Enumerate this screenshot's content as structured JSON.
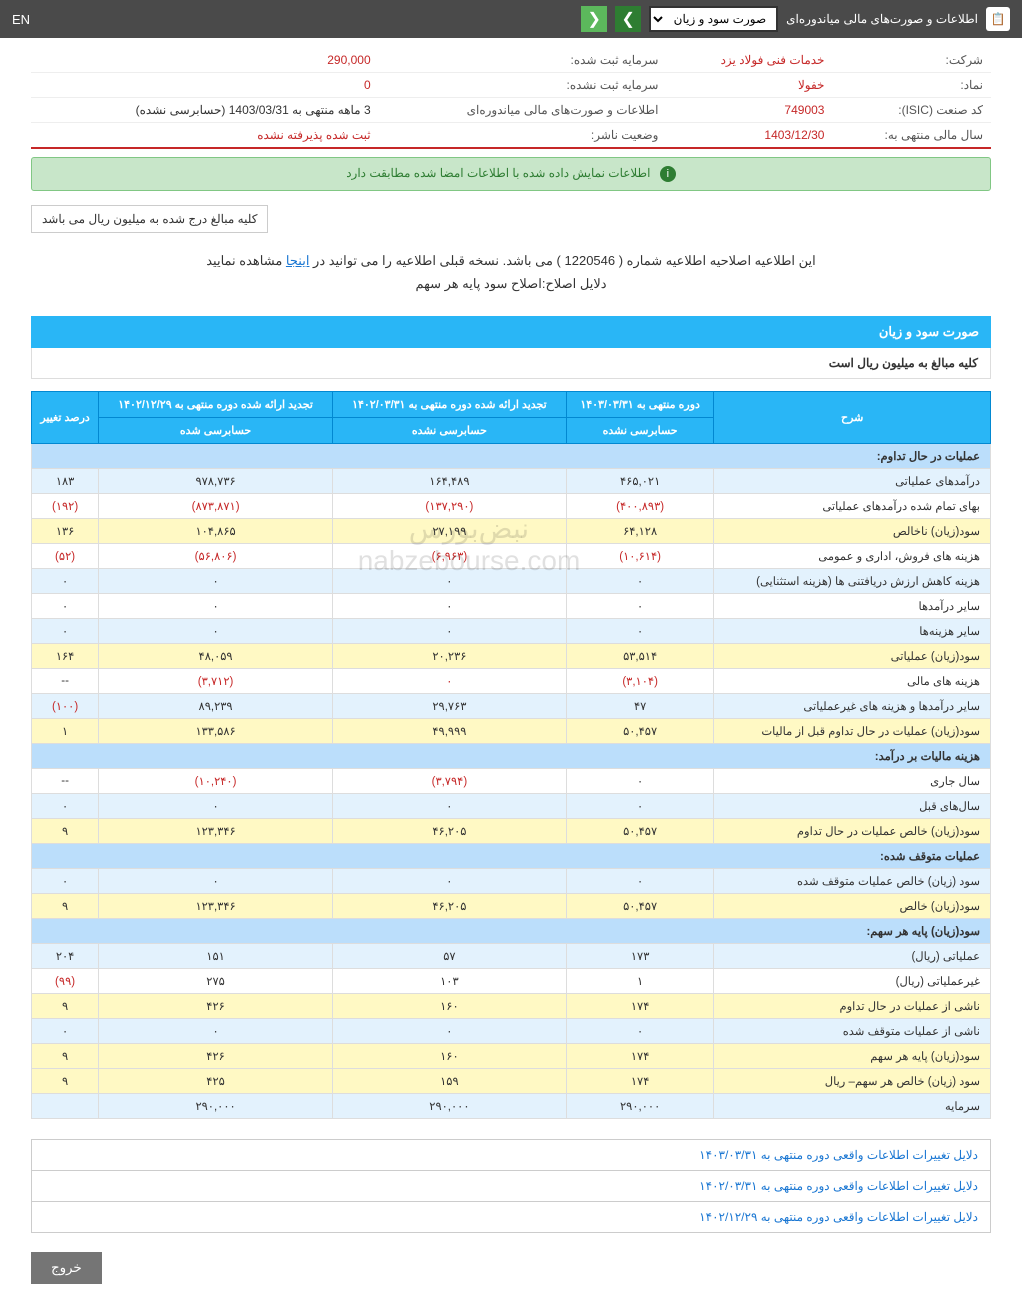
{
  "topbar": {
    "title": "اطلاعات و صورت‌های مالی میاندوره‌ای",
    "dropdown": "صورت سود و زیان",
    "lang": "EN"
  },
  "info": {
    "company_lbl": "شرکت:",
    "company_val": "خدمات فنی فولاد یزد",
    "capital_reg_lbl": "سرمایه ثبت شده:",
    "capital_reg_val": "290,000",
    "symbol_lbl": "نماد:",
    "symbol_val": "خفولا",
    "capital_unreg_lbl": "سرمایه ثبت نشده:",
    "capital_unreg_val": "0",
    "isic_lbl": "کد صنعت (ISIC):",
    "isic_val": "749003",
    "report_lbl": "اطلاعات و صورت‌های مالی میاندوره‌ای",
    "report_val": "3 ماهه منتهی به 1403/03/31 (حسابرسی نشده)",
    "fy_lbl": "سال مالی منتهی به:",
    "fy_val": "1403/12/30",
    "status_lbl": "وضعیت ناشر:",
    "status_val": "ثبت شده پذیرفته نشده"
  },
  "banner": "اطلاعات نمایش داده شده با اطلاعات امضا شده مطابقت دارد",
  "note_box": "کلیه مبالغ درج شده به میلیون ریال می باشد",
  "notice1_a": "این اطلاعیه اصلاحیه اطلاعیه شماره ( 1220546 ) می باشد. نسخه قبلی اطلاعیه را می توانید در ",
  "notice1_link": "اینجا",
  "notice1_b": " مشاهده نمایید",
  "notice2": "دلایل اصلاح:اصلاح سود پایه هر سهم",
  "section_title": "صورت سود و زیان",
  "section_sub": "کلیه مبالغ به میلیون ریال است",
  "headers": {
    "desc": "شرح",
    "c1a": "دوره منتهی به ۱۴۰۳/۰۳/۳۱",
    "c1b": "حسابرسی نشده",
    "c2a": "تجدید ارائه شده دوره منتهی به ۱۴۰۲/۰۳/۳۱",
    "c2b": "حسابرسی نشده",
    "c3a": "تجدید ارائه شده دوره منتهی به ۱۴۰۲/۱۲/۲۹",
    "c3b": "حسابرسی شده",
    "c4": "درصد تغییر"
  },
  "rows": [
    {
      "type": "head",
      "label": "عملیات در حال تداوم:"
    },
    {
      "type": "alt",
      "label": "درآمدهای عملیاتی",
      "v1": "۴۶۵,۰۲۱",
      "v2": "۱۶۴,۴۸۹",
      "v3": "۹۷۸,۷۳۶",
      "v4": "۱۸۳"
    },
    {
      "type": "",
      "label": "بهای تمام شده درآمدهای عملیاتی",
      "v1": "(۴۰۰,۸۹۳)",
      "v2": "(۱۳۷,۲۹۰)",
      "v3": "(۸۷۳,۸۷۱)",
      "v4": "(۱۹۲)",
      "neg": true
    },
    {
      "type": "yellow",
      "label": "سود(زیان) ناخالص",
      "v1": "۶۴,۱۲۸",
      "v2": "۲۷,۱۹۹",
      "v3": "۱۰۴,۸۶۵",
      "v4": "۱۳۶"
    },
    {
      "type": "",
      "label": "هزینه های فروش، اداری و عمومی",
      "v1": "(۱۰,۶۱۴)",
      "v2": "(۶,۹۶۳)",
      "v3": "(۵۶,۸۰۶)",
      "v4": "(۵۲)",
      "neg": true
    },
    {
      "type": "alt",
      "label": "هزینه کاهش ارزش دریافتنی ها (هزینه استثنایی)",
      "v1": "۰",
      "v2": "۰",
      "v3": "۰",
      "v4": "۰"
    },
    {
      "type": "",
      "label": "سایر درآمدها",
      "v1": "۰",
      "v2": "۰",
      "v3": "۰",
      "v4": "۰"
    },
    {
      "type": "alt",
      "label": "سایر هزینه‌ها",
      "v1": "۰",
      "v2": "۰",
      "v3": "۰",
      "v4": "۰"
    },
    {
      "type": "yellow",
      "label": "سود(زیان) عملیاتی",
      "v1": "۵۳,۵۱۴",
      "v2": "۲۰,۲۳۶",
      "v3": "۴۸,۰۵۹",
      "v4": "۱۶۴"
    },
    {
      "type": "",
      "label": "هزینه های مالی",
      "v1": "(۳,۱۰۴)",
      "v2": "۰",
      "v3": "(۳,۷۱۲)",
      "v4": "--",
      "neg": true
    },
    {
      "type": "alt",
      "label": "سایر درآمدها و هزینه های غیرعملیاتی",
      "v1": "۴۷",
      "v2": "۲۹,۷۶۳",
      "v3": "۸۹,۲۳۹",
      "v4": "(۱۰۰)",
      "v4neg": true
    },
    {
      "type": "yellow",
      "label": "سود(زیان) عملیات در حال تداوم قبل از مالیات",
      "v1": "۵۰,۴۵۷",
      "v2": "۴۹,۹۹۹",
      "v3": "۱۳۳,۵۸۶",
      "v4": "۱"
    },
    {
      "type": "head",
      "label": "هزینه مالیات بر درآمد:"
    },
    {
      "type": "",
      "label": "سال جاری",
      "v1": "۰",
      "v2": "(۳,۷۹۴)",
      "v3": "(۱۰,۲۴۰)",
      "v4": "--",
      "v23neg": true
    },
    {
      "type": "alt",
      "label": "سال‌های قبل",
      "v1": "۰",
      "v2": "۰",
      "v3": "۰",
      "v4": "۰"
    },
    {
      "type": "yellow",
      "label": "سود(زیان) خالص عملیات در حال تداوم",
      "v1": "۵۰,۴۵۷",
      "v2": "۴۶,۲۰۵",
      "v3": "۱۲۳,۳۴۶",
      "v4": "۹"
    },
    {
      "type": "head",
      "label": "عملیات متوقف شده:"
    },
    {
      "type": "alt",
      "label": "سود (زیان) خالص عملیات متوقف شده",
      "v1": "۰",
      "v2": "۰",
      "v3": "۰",
      "v4": "۰"
    },
    {
      "type": "yellow",
      "label": "سود(زیان) خالص",
      "v1": "۵۰,۴۵۷",
      "v2": "۴۶,۲۰۵",
      "v3": "۱۲۳,۳۴۶",
      "v4": "۹"
    },
    {
      "type": "head",
      "label": "سود(زیان) پایه هر سهم:"
    },
    {
      "type": "alt",
      "label": "عملیاتی (ریال)",
      "v1": "۱۷۳",
      "v2": "۵۷",
      "v3": "۱۵۱",
      "v4": "۲۰۴"
    },
    {
      "type": "",
      "label": "غیرعملیاتی (ریال)",
      "v1": "۱",
      "v2": "۱۰۳",
      "v3": "۲۷۵",
      "v4": "(۹۹)",
      "v4neg": true
    },
    {
      "type": "yellow",
      "label": "ناشی از عملیات در حال تداوم",
      "v1": "۱۷۴",
      "v2": "۱۶۰",
      "v3": "۴۲۶",
      "v4": "۹"
    },
    {
      "type": "alt",
      "label": "ناشی از عملیات متوقف شده",
      "v1": "۰",
      "v2": "۰",
      "v3": "۰",
      "v4": "۰"
    },
    {
      "type": "yellow",
      "label": "سود(زیان) پایه هر سهم",
      "v1": "۱۷۴",
      "v2": "۱۶۰",
      "v3": "۴۲۶",
      "v4": "۹"
    },
    {
      "type": "yellow",
      "label": "سود (زیان) خالص هر سهم– ریال",
      "v1": "۱۷۴",
      "v2": "۱۵۹",
      "v3": "۴۲۵",
      "v4": "۹"
    },
    {
      "type": "alt",
      "label": "سرمایه",
      "v1": "۲۹۰,۰۰۰",
      "v2": "۲۹۰,۰۰۰",
      "v3": "۲۹۰,۰۰۰",
      "v4": ""
    }
  ],
  "reasons": [
    "دلایل تغییرات اطلاعات واقعی دوره منتهی به ۱۴۰۳/۰۳/۳۱",
    "دلایل تغییرات اطلاعات واقعی دوره منتهی به ۱۴۰۲/۰۳/۳۱",
    "دلایل تغییرات اطلاعات واقعی دوره منتهی به ۱۴۰۲/۱۲/۲۹"
  ],
  "exit": "خروج",
  "wm1": "نبض‌بورس",
  "wm2": "nabzebourse.com"
}
